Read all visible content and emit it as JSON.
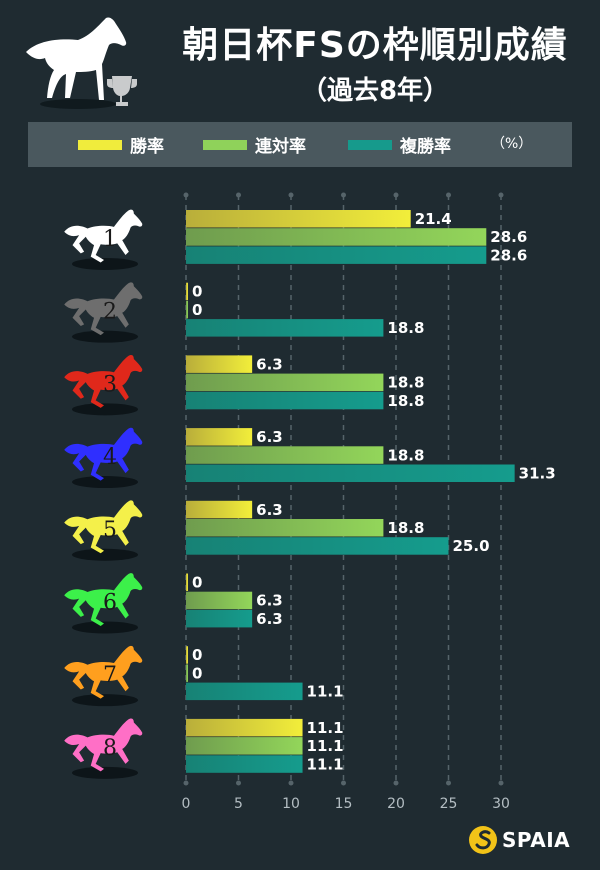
{
  "header": {
    "title": "朝日杯FSの枠順別成績",
    "subtitle": "（過去8年）"
  },
  "legend": {
    "items": [
      {
        "label": "勝率",
        "color": "#f0ec3c"
      },
      {
        "label": "連対率",
        "color": "#8fd25a"
      },
      {
        "label": "複勝率",
        "color": "#169a8c"
      }
    ],
    "unit": "（%）"
  },
  "colors": {
    "background": "#1f2b31",
    "grid": "#56646a",
    "frames": [
      "#ffffff",
      "#6e6e6e",
      "#e0281b",
      "#2f2fff",
      "#f4f04a",
      "#3cf04a",
      "#ff9f1e",
      "#ff6fc6"
    ]
  },
  "chart_data": {
    "type": "bar",
    "orientation": "horizontal",
    "title": "朝日杯FSの枠順別成績",
    "categories": [
      "1",
      "2",
      "3",
      "4",
      "5",
      "6",
      "7",
      "8"
    ],
    "series": [
      {
        "name": "勝率",
        "values": [
          21.4,
          0,
          6.3,
          6.3,
          6.3,
          0,
          0,
          11.1
        ],
        "labels": [
          "21.4",
          "0",
          "6.3",
          "6.3",
          "6.3",
          "0",
          "0",
          "11.1"
        ]
      },
      {
        "name": "連対率",
        "values": [
          28.6,
          0,
          18.8,
          18.8,
          18.8,
          6.3,
          0,
          11.1
        ],
        "labels": [
          "28.6",
          "0",
          "18.8",
          "18.8",
          "18.8",
          "6.3",
          "0",
          "11.1"
        ]
      },
      {
        "name": "複勝率",
        "values": [
          28.6,
          18.8,
          18.8,
          31.3,
          25.0,
          6.3,
          11.1,
          11.1
        ],
        "labels": [
          "28.6",
          "18.8",
          "18.8",
          "31.3",
          "25.0",
          "6.3",
          "11.1",
          "11.1"
        ]
      }
    ],
    "xlim": [
      0,
      30
    ],
    "xticks": [
      "0",
      "5",
      "10",
      "15",
      "20",
      "25",
      "30"
    ],
    "xlabel": "",
    "ylabel": "",
    "unit": "%",
    "grid": true
  },
  "footer": {
    "logo_text": "SPAIA"
  }
}
